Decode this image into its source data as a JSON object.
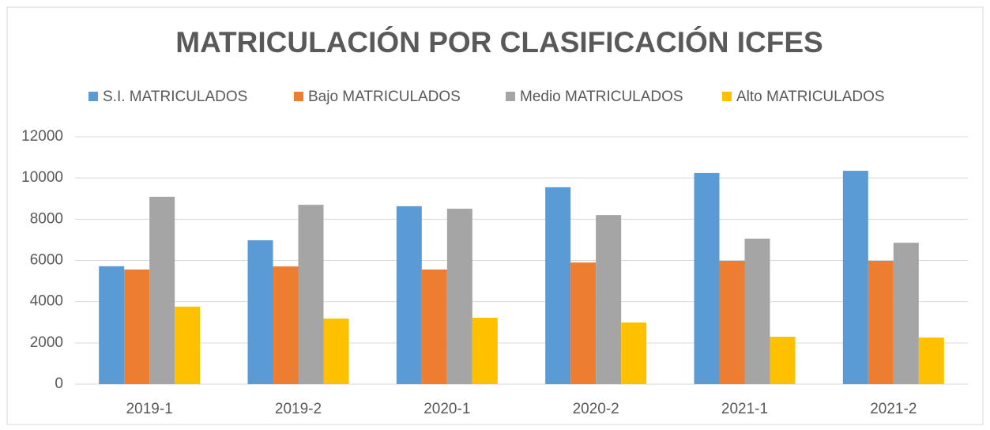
{
  "chart_data": {
    "type": "bar",
    "title": "MATRICULACIÓN POR CLASIFICACIÓN ICFES",
    "categories": [
      "2019-1",
      "2019-2",
      "2020-1",
      "2020-2",
      "2021-1",
      "2021-2"
    ],
    "series": [
      {
        "name": "S.I. MATRICULADOS",
        "color": "#5b9bd5",
        "values": [
          5720,
          6980,
          8630,
          9550,
          10240,
          10350
        ]
      },
      {
        "name": "Bajo MATRICULADOS",
        "color": "#ed7d31",
        "values": [
          5560,
          5710,
          5560,
          5900,
          5980,
          5980
        ]
      },
      {
        "name": "Medio MATRICULADOS",
        "color": "#a5a5a5",
        "values": [
          9090,
          8700,
          8510,
          8200,
          7060,
          6860
        ]
      },
      {
        "name": "Alto MATRICULADOS",
        "color": "#ffc000",
        "values": [
          3760,
          3180,
          3220,
          2990,
          2300,
          2260
        ]
      }
    ],
    "ylim": [
      0,
      12000
    ],
    "yticks": [
      0,
      2000,
      4000,
      6000,
      8000,
      10000,
      12000
    ],
    "grid": true,
    "legend": "top"
  }
}
